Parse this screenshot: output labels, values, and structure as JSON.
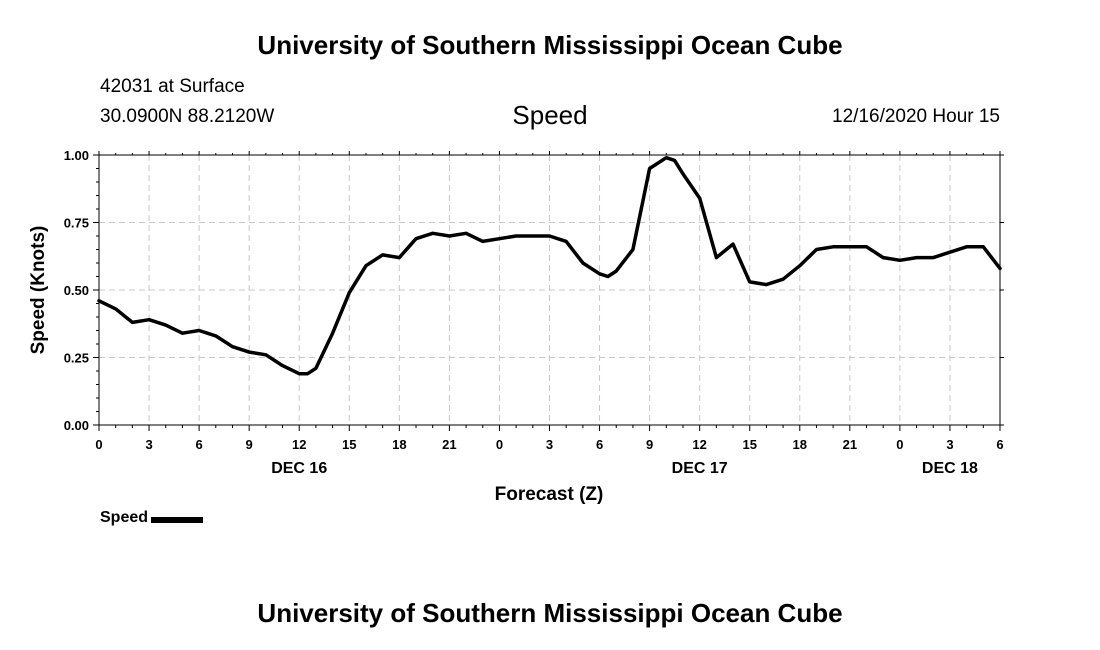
{
  "header": {
    "title": "University of Southern Mississippi Ocean Cube",
    "station": "42031 at Surface",
    "coords": "30.0900N 88.2120W",
    "chart_title": "Speed",
    "datetime": "12/16/2020 Hour 15"
  },
  "footer": {
    "title": "University of Southern Mississippi Ocean Cube"
  },
  "legend": {
    "label": "Speed"
  },
  "colors": {
    "line": "#000000",
    "grid": "#c8c8c8"
  },
  "chart_data": {
    "type": "line",
    "title": "Speed",
    "xlabel": "Forecast (Z)",
    "ylabel": "Speed (Knots)",
    "xlim": [
      0,
      54
    ],
    "ylim": [
      0,
      1
    ],
    "grid": true,
    "legend_position": "bottom-left",
    "x_ticks": [
      "0",
      "3",
      "6",
      "9",
      "12",
      "15",
      "18",
      "21",
      "0",
      "3",
      "6",
      "9",
      "12",
      "15",
      "18",
      "21",
      "0",
      "3",
      "6"
    ],
    "y_ticks": [
      "0.00",
      "0.25",
      "0.50",
      "0.75",
      "1.00"
    ],
    "date_labels": [
      {
        "label": "DEC 16",
        "at_hour": 12
      },
      {
        "label": "DEC 17",
        "at_hour": 36
      },
      {
        "label": "DEC 18",
        "at_hour": 51
      }
    ],
    "series": [
      {
        "name": "Speed",
        "x": [
          0,
          1,
          2,
          3,
          4,
          5,
          6,
          7,
          8,
          9,
          10,
          11,
          12,
          12.5,
          13,
          14,
          15,
          16,
          17,
          18,
          19,
          20,
          21,
          22,
          23,
          24,
          25,
          26,
          27,
          28,
          29,
          30,
          30.5,
          31,
          32,
          33,
          34,
          34.5,
          35,
          36,
          37,
          38,
          39,
          40,
          41,
          42,
          43,
          44,
          45,
          46,
          47,
          48,
          49,
          50,
          51,
          52,
          53,
          54
        ],
        "y": [
          0.46,
          0.43,
          0.38,
          0.39,
          0.37,
          0.34,
          0.35,
          0.33,
          0.29,
          0.27,
          0.26,
          0.22,
          0.19,
          0.19,
          0.21,
          0.34,
          0.49,
          0.59,
          0.63,
          0.62,
          0.69,
          0.71,
          0.7,
          0.71,
          0.68,
          0.69,
          0.7,
          0.7,
          0.7,
          0.68,
          0.6,
          0.56,
          0.55,
          0.57,
          0.65,
          0.95,
          0.99,
          0.98,
          0.93,
          0.84,
          0.62,
          0.67,
          0.53,
          0.52,
          0.54,
          0.59,
          0.65,
          0.66,
          0.66,
          0.66,
          0.62,
          0.61,
          0.62,
          0.62,
          0.64,
          0.66,
          0.66,
          0.58
        ]
      }
    ]
  }
}
